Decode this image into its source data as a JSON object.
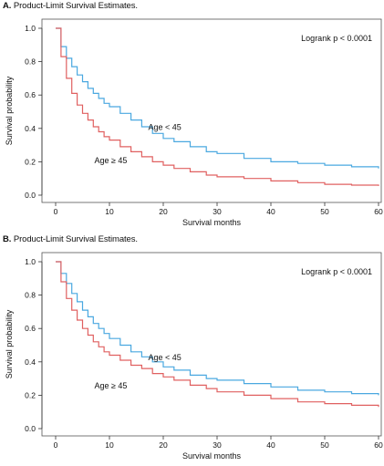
{
  "chart_data": [
    {
      "type": "line",
      "step": true,
      "panel_label": "A.",
      "title": "Product-Limit Survival Estimates.",
      "xlabel": "Survival months",
      "ylabel": "Survival probability",
      "xlim": [
        0,
        60
      ],
      "ylim": [
        0,
        1.0
      ],
      "x_ticks": [
        0,
        10,
        20,
        30,
        40,
        50,
        60
      ],
      "y_ticks": [
        "0.0",
        "0.2",
        "0.4",
        "0.6",
        "0.8",
        "1.0"
      ],
      "grid": false,
      "annotation": "Logrank p < 0.0001",
      "series": [
        {
          "name": "Age < 45",
          "color": "#4aa8e0",
          "x": [
            0,
            1,
            2,
            3,
            4,
            5,
            6,
            7,
            8,
            9,
            10,
            12,
            14,
            16,
            18,
            20,
            22,
            25,
            28,
            30,
            35,
            40,
            45,
            50,
            55,
            60
          ],
          "y": [
            1.0,
            0.89,
            0.82,
            0.77,
            0.72,
            0.68,
            0.64,
            0.61,
            0.58,
            0.55,
            0.53,
            0.49,
            0.45,
            0.41,
            0.37,
            0.34,
            0.32,
            0.29,
            0.26,
            0.25,
            0.22,
            0.2,
            0.19,
            0.18,
            0.17,
            0.16
          ]
        },
        {
          "name": "Age ≥ 45",
          "color": "#e06060",
          "x": [
            0,
            1,
            2,
            3,
            4,
            5,
            6,
            7,
            8,
            9,
            10,
            12,
            14,
            16,
            18,
            20,
            22,
            25,
            28,
            30,
            35,
            40,
            45,
            50,
            55,
            60
          ],
          "y": [
            1.0,
            0.83,
            0.7,
            0.61,
            0.54,
            0.49,
            0.45,
            0.41,
            0.38,
            0.35,
            0.33,
            0.29,
            0.26,
            0.23,
            0.2,
            0.18,
            0.16,
            0.14,
            0.12,
            0.11,
            0.1,
            0.085,
            0.075,
            0.065,
            0.06,
            0.055
          ]
        }
      ],
      "series_labels": [
        {
          "text": "Age < 45",
          "x": 17.2,
          "y": 0.39
        },
        {
          "text": "Age ≥ 45",
          "x": 7.2,
          "y": 0.19
        }
      ]
    },
    {
      "type": "line",
      "step": true,
      "panel_label": "B.",
      "title": "Product-Limit Survival Estimates.",
      "xlabel": "Survival months",
      "ylabel": "Survival probability",
      "xlim": [
        0,
        60
      ],
      "ylim": [
        0,
        1.0
      ],
      "x_ticks": [
        0,
        10,
        20,
        30,
        40,
        50,
        60
      ],
      "y_ticks": [
        "0.0",
        "0.2",
        "0.4",
        "0.6",
        "0.8",
        "1.0"
      ],
      "grid": false,
      "annotation": "Logrank p < 0.0001",
      "series": [
        {
          "name": "Age < 45",
          "color": "#4aa8e0",
          "x": [
            0,
            1,
            2,
            3,
            4,
            5,
            6,
            7,
            8,
            9,
            10,
            12,
            14,
            16,
            18,
            20,
            22,
            25,
            28,
            30,
            35,
            40,
            45,
            50,
            55,
            60
          ],
          "y": [
            1.0,
            0.93,
            0.87,
            0.81,
            0.76,
            0.71,
            0.67,
            0.63,
            0.6,
            0.57,
            0.54,
            0.5,
            0.46,
            0.43,
            0.4,
            0.37,
            0.35,
            0.32,
            0.3,
            0.29,
            0.27,
            0.25,
            0.23,
            0.22,
            0.21,
            0.2
          ]
        },
        {
          "name": "Age ≥ 45",
          "color": "#e06060",
          "x": [
            0,
            1,
            2,
            3,
            4,
            5,
            6,
            7,
            8,
            9,
            10,
            12,
            14,
            16,
            18,
            20,
            22,
            25,
            28,
            30,
            35,
            40,
            45,
            50,
            55,
            60
          ],
          "y": [
            1.0,
            0.88,
            0.78,
            0.71,
            0.65,
            0.6,
            0.56,
            0.52,
            0.49,
            0.46,
            0.44,
            0.41,
            0.38,
            0.36,
            0.33,
            0.31,
            0.29,
            0.26,
            0.24,
            0.22,
            0.2,
            0.18,
            0.16,
            0.15,
            0.14,
            0.13
          ]
        }
      ],
      "series_labels": [
        {
          "text": "Age < 45",
          "x": 17.2,
          "y": 0.41
        },
        {
          "text": "Age ≥ 45",
          "x": 7.2,
          "y": 0.24
        }
      ]
    }
  ]
}
